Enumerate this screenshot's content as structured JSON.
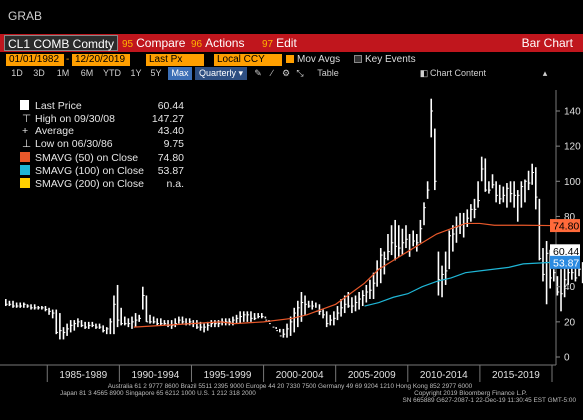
{
  "window": {
    "title": "GRAB"
  },
  "toolbar": {
    "ticker": "CL1 COMB Comdty",
    "compare": {
      "num": "95",
      "label": "Compare"
    },
    "actions": {
      "num": "96",
      "label": "Actions"
    },
    "edit": {
      "num": "97",
      "label": "Edit"
    },
    "view": "Bar Chart",
    "start_date": "01/01/1982",
    "end_date": "12/20/2019",
    "field": "Last Px",
    "currency": "Local CCY",
    "mov_avgs": "Mov Avgs",
    "key_events": "Key Events"
  },
  "ranges": {
    "items": [
      "1D",
      "3D",
      "1M",
      "6M",
      "YTD",
      "1Y",
      "5Y",
      "Max"
    ],
    "period": "Quarterly",
    "table": "Table",
    "chart_content": "Chart Content"
  },
  "legend": {
    "last_price": {
      "label": "Last Price",
      "value": "60.44"
    },
    "high": {
      "label": "High on 09/30/08",
      "value": "147.27"
    },
    "average": {
      "label": "Average",
      "value": "43.40"
    },
    "low": {
      "label": "Low on 06/30/86",
      "value": "9.75"
    },
    "sma50": {
      "label": "SMAVG (50)  on Close",
      "value": "74.80"
    },
    "sma100": {
      "label": "SMAVG (100)  on Close",
      "value": "53.87"
    },
    "sma200": {
      "label": "SMAVG (200)  on Close",
      "value": "n.a."
    }
  },
  "footer": {
    "line1": "Australia 61 2 9777 8600 Brazil 5511 2395 9000 Europe 44 20 7330 7500 Germany 49 69 9204 1210 Hong Kong 852 2977 6000",
    "line2": "Japan 81 3 4565 8900        Singapore 65 6212 1000         U.S. 1 212 318 2000",
    "line3": "Copyright 2019 Bloomberg Finance L.P.",
    "line4": "SN 665889 G627-2087-1 22-Dec-19 11:30:45 EST  GMT-5:00"
  },
  "colors": {
    "background": "#000000",
    "menubar": "#c0161d",
    "field_bg": "#ff9f00",
    "price_bars": "#ffffff",
    "sma50": "#e8582a",
    "sma100": "#1fb6d6",
    "sma200": "#ffd000",
    "last_label_bg": "#ffffff",
    "sma50_label_bg": "#ff6a3a",
    "sma100_label_bg": "#2b8ae0"
  },
  "chart_data": {
    "type": "bar",
    "title": "",
    "xlabel": "",
    "ylabel": "",
    "ylim": [
      0,
      160
    ],
    "yticks": [
      0,
      20,
      40,
      60,
      80,
      100,
      120,
      140
    ],
    "x_period_labels": [
      "1985-1989",
      "1990-1994",
      "1995-1999",
      "2000-2004",
      "2005-2009",
      "2010-2014",
      "2015-2019"
    ],
    "grid": false,
    "legend_position": "top-left",
    "series": [
      {
        "name": "Last Price",
        "frequency": "quarterly",
        "start_year": 1982,
        "low": [
          29,
          29,
          28,
          28,
          28,
          28,
          28,
          27,
          27,
          27,
          27,
          26,
          24,
          22,
          13,
          10,
          10,
          12,
          14,
          15,
          17,
          17,
          16,
          16,
          17,
          16,
          16,
          14,
          13,
          13,
          13,
          17,
          18,
          18,
          17,
          16,
          17,
          20,
          27,
          20,
          19,
          19,
          18,
          18,
          18,
          17,
          16,
          17,
          19,
          19,
          18,
          18,
          17,
          16,
          15,
          14,
          15,
          17,
          17,
          17,
          18,
          18,
          18,
          18,
          19,
          19,
          20,
          20,
          20,
          21,
          22,
          22,
          22,
          20,
          19,
          16,
          14,
          11,
          11,
          12,
          14,
          17,
          20,
          24,
          28,
          27,
          28,
          24,
          22,
          17,
          18,
          18,
          21,
          23,
          25,
          28,
          25,
          26,
          27,
          29,
          31,
          33,
          33,
          40,
          42,
          47,
          55,
          58,
          55,
          57,
          58,
          62,
          57,
          63,
          60,
          65,
          75,
          90,
          125,
          95,
          35,
          34,
          41,
          50,
          60,
          65,
          70,
          68,
          74,
          77,
          79,
          85,
          100,
          94,
          93,
          96,
          88,
          87,
          88,
          85,
          88,
          85,
          77,
          85,
          88,
          95,
          98,
          84,
          55,
          43,
          30,
          39,
          43,
          35,
          26,
          34,
          41,
          44,
          43,
          46,
          42,
          48,
          47,
          52,
          56,
          60,
          62,
          55,
          57,
          56,
          52,
          54,
          54,
          58
        ],
        "high": [
          33,
          32,
          32,
          31,
          31,
          31,
          30,
          30,
          30,
          29,
          29,
          29,
          28,
          27,
          27,
          25,
          17,
          19,
          21,
          21,
          22,
          21,
          20,
          20,
          20,
          19,
          19,
          18,
          17,
          22,
          35,
          41,
          28,
          23,
          22,
          23,
          25,
          24,
          40,
          35,
          24,
          23,
          22,
          22,
          21,
          21,
          21,
          22,
          23,
          23,
          22,
          22,
          21,
          21,
          20,
          19,
          20,
          21,
          21,
          21,
          22,
          22,
          22,
          23,
          24,
          26,
          26,
          26,
          26,
          25,
          25,
          25,
          23,
          21,
          19,
          17,
          16,
          16,
          19,
          23,
          28,
          32,
          37,
          35,
          32,
          32,
          31,
          30,
          27,
          26,
          24,
          26,
          29,
          33,
          35,
          37,
          34,
          35,
          37,
          38,
          41,
          44,
          48,
          55,
          62,
          60,
          70,
          75,
          78,
          75,
          73,
          75,
          70,
          72,
          70,
          78,
          88,
          100,
          147,
          130,
          60,
          52,
          60,
          72,
          75,
          80,
          82,
          82,
          84,
          87,
          90,
          100,
          114,
          113,
          100,
          104,
          100,
          98,
          97,
          99,
          100,
          100,
          95,
          100,
          101,
          106,
          110,
          108,
          90,
          62,
          66,
          61,
          50,
          46,
          50,
          52,
          55,
          52,
          54,
          56,
          54,
          56,
          60,
          62,
          68,
          70,
          72,
          76,
          70,
          66,
          63,
          66,
          65,
          63
        ],
        "close": [
          30,
          30,
          29,
          29,
          29,
          30,
          29,
          28,
          28,
          28,
          28,
          27,
          26,
          25,
          14,
          15,
          14,
          16,
          18,
          19,
          20,
          18,
          17,
          18,
          18,
          17,
          17,
          15,
          16,
          20,
          30,
          21,
          19,
          19,
          19,
          20,
          21,
          22,
          35,
          20,
          20,
          20,
          19,
          19,
          19,
          18,
          18,
          19,
          21,
          20,
          19,
          20,
          19,
          17,
          17,
          17,
          18,
          19,
          19,
          19,
          20,
          20,
          20,
          21,
          22,
          23,
          24,
          24,
          22,
          22,
          23,
          23,
          21,
          19,
          17,
          15,
          12,
          13,
          16,
          20,
          25,
          28,
          31,
          30,
          29,
          29,
          26,
          26,
          24,
          19,
          21,
          22,
          25,
          28,
          30,
          29,
          29,
          31,
          33,
          35,
          37,
          38,
          42,
          50,
          58,
          56,
          60,
          65,
          63,
          62,
          65,
          67,
          61,
          66,
          65,
          73,
          85,
          95,
          140,
          100,
          44,
          47,
          49,
          69,
          70,
          74,
          75,
          76,
          79,
          84,
          84,
          89,
          107,
          95,
          95,
          98,
          92,
          90,
          92,
          96,
          93,
          92,
          92,
          97,
          100,
          99,
          105,
          91,
          56,
          47,
          59,
          45,
          48,
          37,
          36,
          44,
          48,
          48,
          45,
          50,
          51,
          52,
          56,
          60,
          64,
          65,
          68,
          58,
          59,
          65,
          58,
          60,
          55,
          60
        ]
      },
      {
        "name": "SMAVG (50)  on Close",
        "points": [
          [
            1991,
            17
          ],
          [
            1993,
            18
          ],
          [
            1995,
            19
          ],
          [
            1997,
            20
          ],
          [
            1998,
            19
          ],
          [
            2000,
            20
          ],
          [
            2002,
            22
          ],
          [
            2003,
            24
          ],
          [
            2004,
            27
          ],
          [
            2005,
            30
          ],
          [
            2006,
            36
          ],
          [
            2007,
            42
          ],
          [
            2008,
            50
          ],
          [
            2009,
            55
          ],
          [
            2010,
            60
          ],
          [
            2011,
            65
          ],
          [
            2012,
            70
          ],
          [
            2013,
            73
          ],
          [
            2014,
            76
          ],
          [
            2015,
            76
          ],
          [
            2016,
            75
          ],
          [
            2017,
            75
          ],
          [
            2018,
            75
          ],
          [
            2019.95,
            74.8
          ]
        ]
      },
      {
        "name": "SMAVG (100)  on Close",
        "points": [
          [
            2007,
            29
          ],
          [
            2008,
            31
          ],
          [
            2009,
            34
          ],
          [
            2010,
            36
          ],
          [
            2011,
            40
          ],
          [
            2012,
            43
          ],
          [
            2013,
            45
          ],
          [
            2014,
            48
          ],
          [
            2015,
            49
          ],
          [
            2016,
            50
          ],
          [
            2017,
            51
          ],
          [
            2018,
            53
          ],
          [
            2019.95,
            53.87
          ]
        ]
      },
      {
        "name": "SMAVG (200)  on Close",
        "points": []
      }
    ],
    "right_labels": [
      {
        "series": "SMAVG (50)  on Close",
        "value": 74.8
      },
      {
        "series": "Last Price",
        "value": 60.44
      },
      {
        "series": "SMAVG (100)  on Close",
        "value": 53.87
      }
    ]
  }
}
